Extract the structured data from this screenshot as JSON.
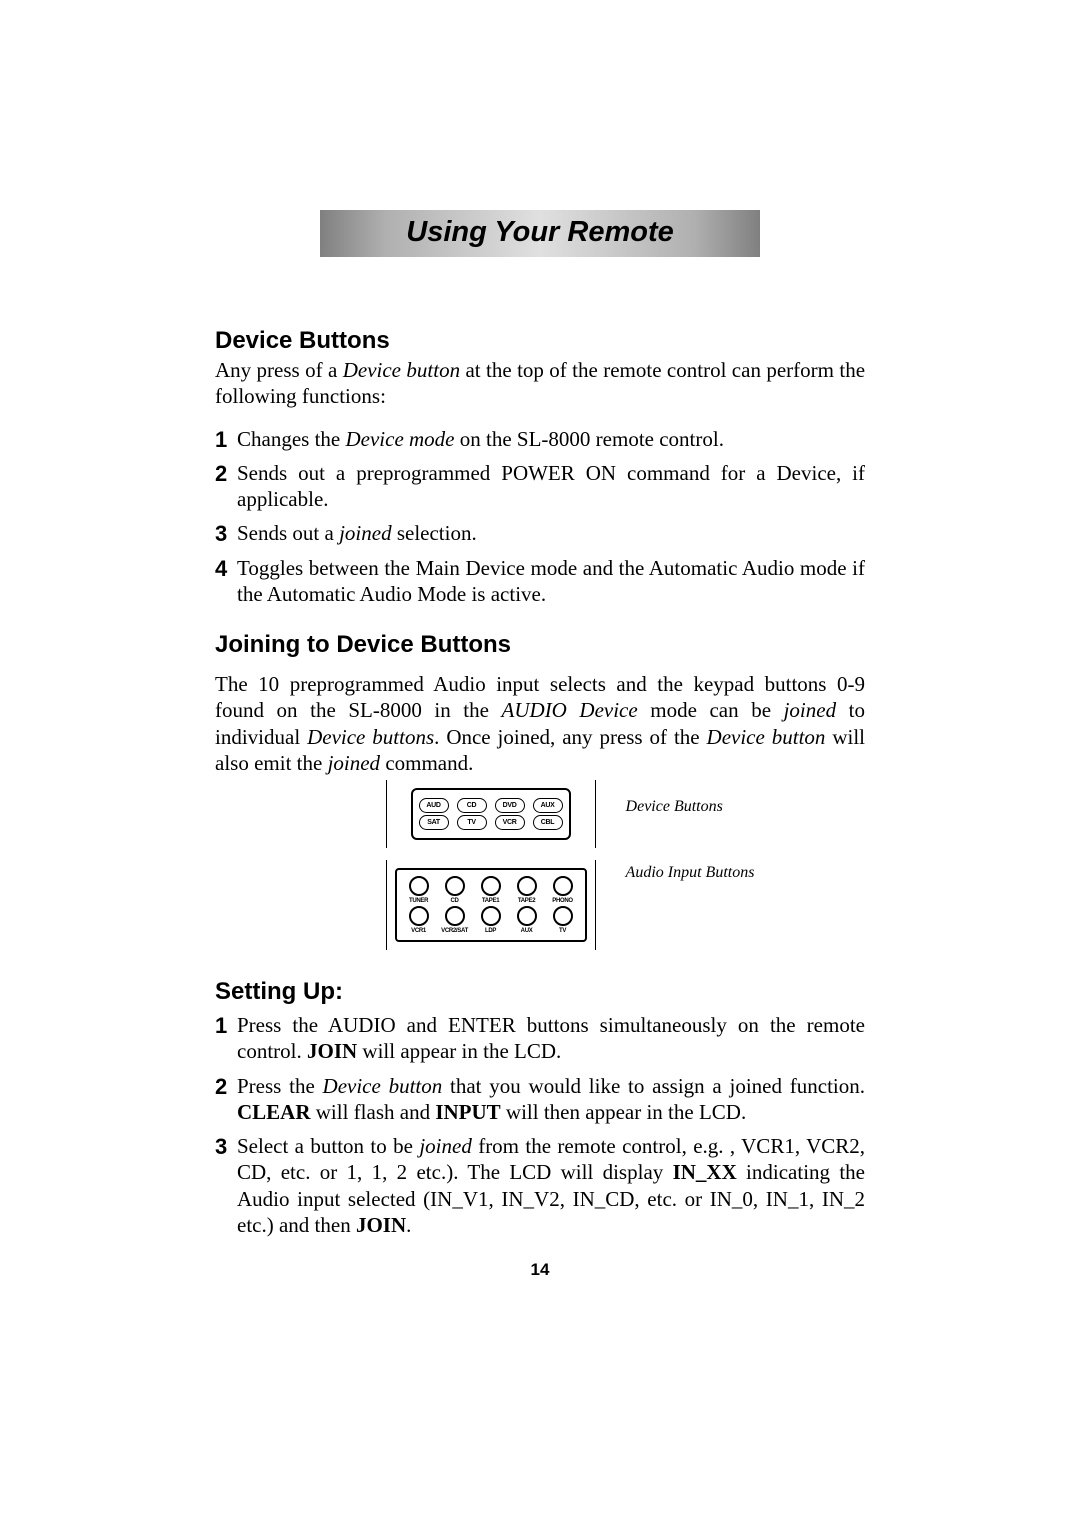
{
  "banner": {
    "title": "Using Your Remote"
  },
  "section1": {
    "heading": "Device Buttons",
    "intro_a": "Any press of a ",
    "intro_b": "Device button",
    "intro_c": " at the top of the remote control can perform the following functions:",
    "items": [
      {
        "num": "1",
        "a": "Changes the ",
        "b": "Device mode",
        "c": " on the SL-8000 remote control."
      },
      {
        "num": "2",
        "a": "Sends out a preprogrammed POWER ON command for a Device, if applicable."
      },
      {
        "num": "3",
        "a": "Sends out a ",
        "b": "joined",
        "c": " selection."
      },
      {
        "num": "4",
        "a": "Toggles between the Main Device mode and the Automatic Audio mode if the Automatic Audio Mode is active."
      }
    ]
  },
  "section2": {
    "heading": "Joining to Device Buttons",
    "para": {
      "a": "The 10 preprogrammed Audio input selects and the keypad buttons 0-9 found on the SL-8000 in the ",
      "b": "AUDIO Device",
      "c": " mode can be ",
      "d": "joined",
      "e": " to individual ",
      "f": "Device buttons",
      "g": ". Once joined, any press of the ",
      "h": "Device button",
      "i": " will also emit the ",
      "j": "joined",
      "k": " command."
    }
  },
  "diagram": {
    "device_row1": [
      "AUD",
      "CD",
      "DVD",
      "AUX"
    ],
    "device_row2": [
      "SAT",
      "TV",
      "VCR",
      "CBL"
    ],
    "audio_row1": [
      "TUNER",
      "CD",
      "TAPE1",
      "TAPE2",
      "PHONO"
    ],
    "audio_row2": [
      "VCR1",
      "VCR2/SAT",
      "LDP",
      "AUX",
      "TV"
    ],
    "caption1": "Device Buttons",
    "caption2": "Audio Input Buttons"
  },
  "section3": {
    "heading": "Setting Up:",
    "items": [
      {
        "num": "1",
        "parts": [
          {
            "t": "Press the AUDIO and ENTER buttons simultaneously on the remote control. "
          },
          {
            "t": "JOIN",
            "bold": true
          },
          {
            "t": " will appear in the LCD."
          }
        ]
      },
      {
        "num": "2",
        "parts": [
          {
            "t": "Press the "
          },
          {
            "t": "Device button",
            "italic": true
          },
          {
            "t": " that you would like to assign a joined function. "
          },
          {
            "t": "CLEAR",
            "bold": true
          },
          {
            "t": " will flash and "
          },
          {
            "t": "INPUT",
            "bold": true
          },
          {
            "t": " will then appear in the LCD."
          }
        ]
      },
      {
        "num": "3",
        "parts": [
          {
            "t": "Select a button to be "
          },
          {
            "t": "joined",
            "italic": true
          },
          {
            "t": " from the remote control, e.g. , VCR1, VCR2, CD, etc. or 1, 1, 2 etc.). The LCD will display "
          },
          {
            "t": "IN_XX",
            "bold": true
          },
          {
            "t": " indicating the Audio input selected (IN_V1, IN_V2, IN_CD, etc. or IN_0, IN_1, IN_2 etc.) and then "
          },
          {
            "t": "JOIN",
            "bold": true
          },
          {
            "t": "."
          }
        ]
      }
    ]
  },
  "page_number": "14"
}
